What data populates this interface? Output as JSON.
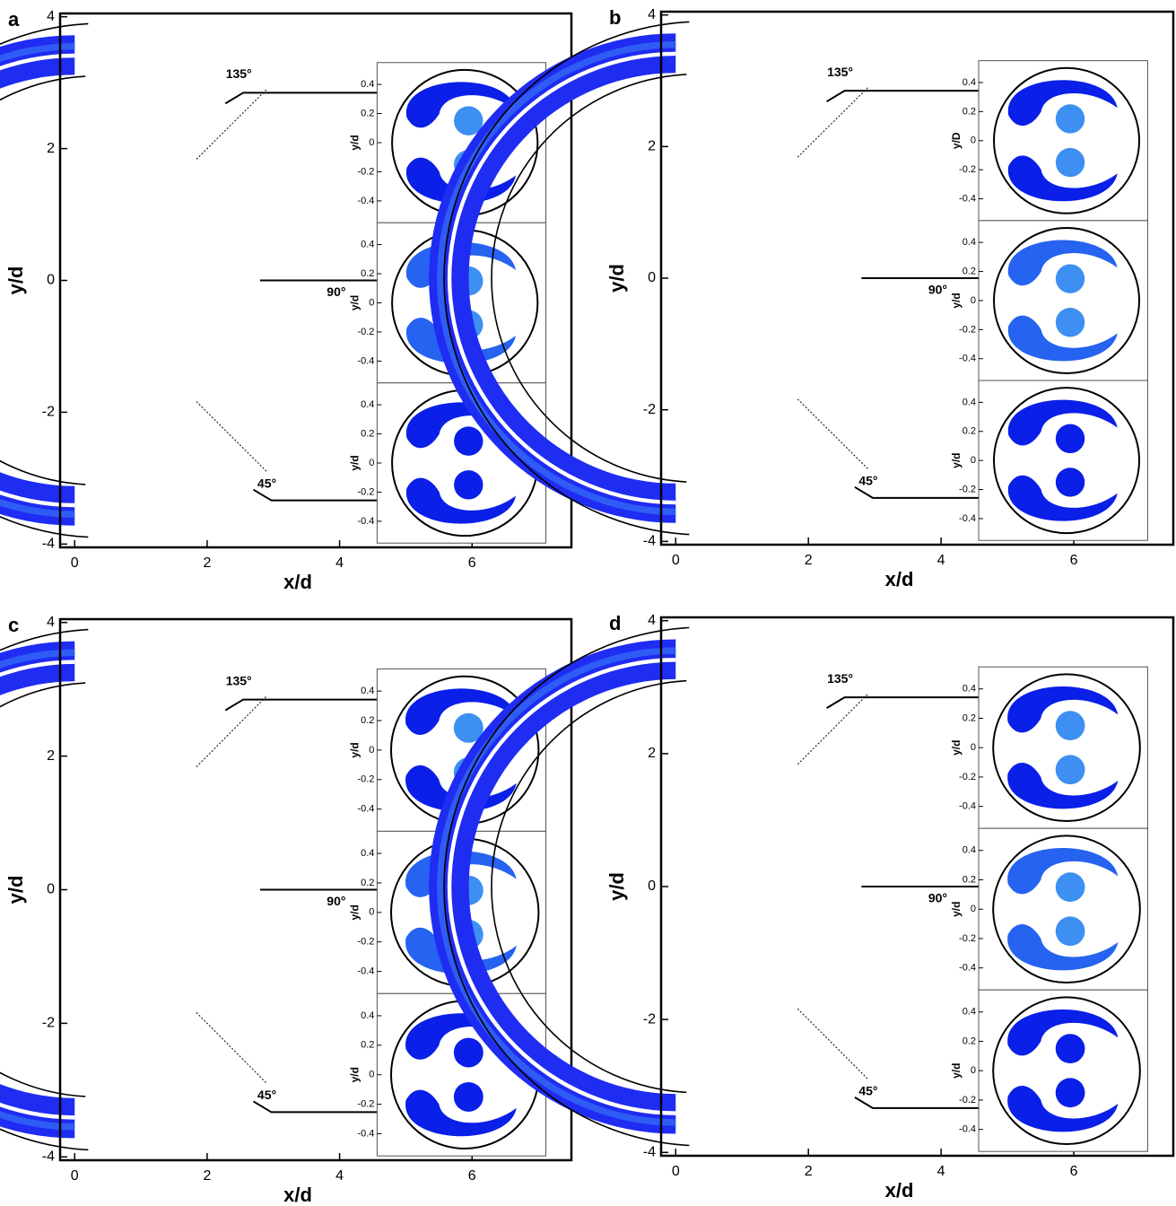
{
  "chart_data": [
    {
      "type": "contour",
      "panel": "a",
      "xlabel": "x/d",
      "ylabel": "y/d",
      "xlim": [
        -0.22,
        7.5
      ],
      "ylim": [
        -4.05,
        4.05
      ],
      "xticks": [
        0,
        2,
        4,
        6
      ],
      "yticks": [
        -4,
        -2,
        0,
        2,
        4
      ],
      "annotations": [
        "135°",
        "90°",
        "45°"
      ],
      "insets": [
        {
          "ylabel": "y/d",
          "ylim": [
            -0.55,
            0.55
          ],
          "yticks": [
            0.4,
            0.2,
            0,
            -0.2,
            -0.4
          ]
        },
        {
          "ylabel": "y/d",
          "ylim": [
            -0.55,
            0.55
          ],
          "yticks": [
            0.4,
            0.2,
            0,
            -0.2,
            -0.4
          ]
        },
        {
          "ylabel": "y/d",
          "ylim": [
            -0.55,
            0.55
          ],
          "yticks": [
            0.4,
            0.2,
            0,
            -0.2,
            -0.4
          ]
        }
      ]
    },
    {
      "type": "contour",
      "panel": "b",
      "xlabel": "x/d",
      "ylabel": "y/d",
      "xlim": [
        -0.22,
        7.5
      ],
      "ylim": [
        -4.05,
        4.05
      ],
      "xticks": [
        0,
        2,
        4,
        6
      ],
      "yticks": [
        -4,
        -2,
        0,
        2,
        4
      ],
      "annotations": [
        "135°",
        "90°",
        "45°"
      ],
      "insets": [
        {
          "ylabel": "y/D",
          "ylim": [
            -0.55,
            0.55
          ],
          "yticks": [
            0.4,
            0.2,
            0,
            -0.2,
            -0.4
          ]
        },
        {
          "ylabel": "y/d",
          "ylim": [
            -0.55,
            0.55
          ],
          "yticks": [
            0.4,
            0.2,
            0,
            -0.2,
            -0.4
          ]
        },
        {
          "ylabel": "y/d",
          "ylim": [
            -0.55,
            0.55
          ],
          "yticks": [
            0.4,
            0.2,
            0,
            -0.2,
            -0.4
          ]
        }
      ]
    },
    {
      "type": "contour",
      "panel": "c",
      "xlabel": "x/d",
      "ylabel": "y/d",
      "xlim": [
        -0.22,
        7.5
      ],
      "ylim": [
        -4.05,
        4.05
      ],
      "xticks": [
        0,
        2,
        4,
        6
      ],
      "yticks": [
        -4,
        -2,
        0,
        2,
        4
      ],
      "annotations": [
        "135°",
        "90°",
        "45°"
      ],
      "insets": [
        {
          "ylabel": "y/d",
          "ylim": [
            -0.55,
            0.55
          ],
          "yticks": [
            0.4,
            0.2,
            0,
            -0.2,
            -0.4
          ]
        },
        {
          "ylabel": "y/d",
          "ylim": [
            -0.55,
            0.55
          ],
          "yticks": [
            0.4,
            0.2,
            0,
            -0.2,
            -0.4
          ]
        },
        {
          "ylabel": "y/d",
          "ylim": [
            -0.55,
            0.55
          ],
          "yticks": [
            0.4,
            0.2,
            0,
            -0.2,
            -0.4
          ]
        }
      ]
    },
    {
      "type": "contour",
      "panel": "d",
      "xlabel": "x/d",
      "ylabel": "y/d",
      "xlim": [
        -0.22,
        7.5
      ],
      "ylim": [
        -4.05,
        4.05
      ],
      "xticks": [
        0,
        2,
        4,
        6
      ],
      "yticks": [
        -4,
        -2,
        0,
        2,
        4
      ],
      "annotations": [
        "135°",
        "90°",
        "45°"
      ],
      "insets": [
        {
          "ylabel": "y/d",
          "ylim": [
            -0.55,
            0.55
          ],
          "yticks": [
            0.4,
            0.2,
            0,
            -0.2,
            -0.4
          ]
        },
        {
          "ylabel": "y/d",
          "ylim": [
            -0.55,
            0.55
          ],
          "yticks": [
            0.4,
            0.2,
            0,
            -0.2,
            -0.4
          ]
        },
        {
          "ylabel": "y/d",
          "ylim": [
            -0.55,
            0.55
          ],
          "yticks": [
            0.4,
            0.2,
            0,
            -0.2,
            -0.4
          ]
        }
      ]
    }
  ]
}
